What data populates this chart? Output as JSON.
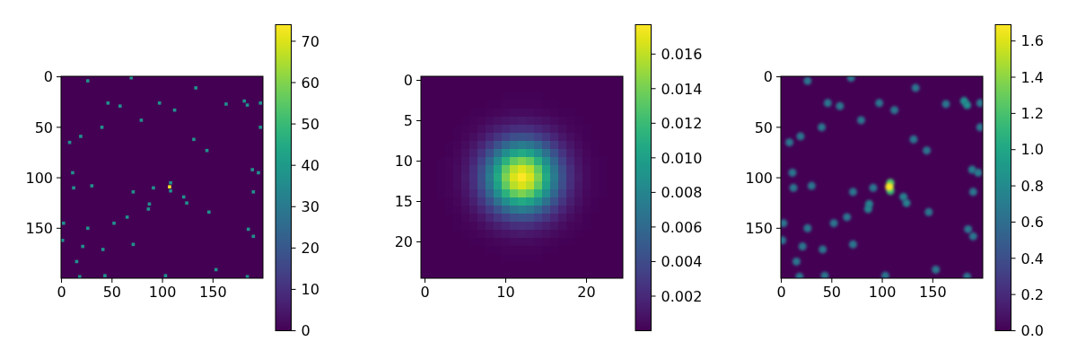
{
  "chart_data": [
    {
      "type": "scatter",
      "marker": "square",
      "clim": [
        0,
        74
      ],
      "cticks": [
        0,
        10,
        20,
        30,
        40,
        50,
        60,
        70
      ],
      "xlim": [
        -0.5,
        199.5
      ],
      "ylim": [
        199.5,
        -0.5
      ],
      "xticks": [
        0,
        50,
        100,
        150
      ],
      "yticks": [
        0,
        50,
        100,
        150
      ],
      "x": [
        26,
        69,
        133,
        46,
        58,
        97,
        112,
        163,
        181,
        184,
        197,
        79,
        40,
        197,
        19,
        8,
        131,
        144,
        11,
        189,
        195,
        12,
        30,
        71,
        91,
        108,
        107,
        108,
        190,
        121,
        124,
        87,
        86,
        146,
        65,
        52,
        2,
        26,
        185,
        190,
        1,
        21,
        41,
        71,
        15,
        18,
        43,
        103,
        153,
        184
      ],
      "values": [
        4,
        1,
        11,
        26,
        29,
        26,
        33,
        27,
        24,
        28,
        26,
        43,
        50,
        50,
        59,
        65,
        62,
        73,
        95,
        92,
        95,
        110,
        108,
        114,
        110,
        105,
        109,
        113,
        114,
        119,
        125,
        126,
        131,
        134,
        139,
        145,
        145,
        150,
        151,
        158,
        162,
        168,
        171,
        166,
        183,
        198,
        197,
        197,
        191,
        198
      ],
      "cvalues": [
        37,
        37,
        37,
        37,
        37,
        37,
        37,
        37,
        37,
        37,
        37,
        37,
        37,
        37,
        37,
        37,
        37,
        37,
        37,
        37,
        37,
        37,
        37,
        37,
        37,
        37,
        74,
        37,
        37,
        37,
        37,
        37,
        37,
        37,
        37,
        37,
        37,
        37,
        37,
        37,
        37,
        37,
        37,
        37,
        37,
        37,
        37,
        37,
        37,
        37
      ]
    },
    {
      "type": "heatmap",
      "clim": [
        0,
        0.0177
      ],
      "cticks": [
        0.002,
        0.004,
        0.006,
        0.008,
        {
          "value": 0.01,
          "label": "0.010"
        },
        0.012,
        0.014,
        0.016
      ],
      "xlim": [
        -0.5,
        24.5
      ],
      "ylim": [
        24.5,
        -0.5
      ],
      "xticks": [
        0,
        10,
        20
      ],
      "yticks": [
        0,
        5,
        10,
        15,
        20
      ],
      "cells": [
        [
          0,
          0,
          0,
          0,
          0,
          0,
          0,
          0,
          0,
          0,
          0,
          0,
          0,
          0,
          0,
          0,
          0,
          0,
          0,
          0,
          0,
          0,
          0,
          0,
          0
        ],
        [
          0,
          0,
          0,
          0,
          0,
          0,
          0,
          0,
          0,
          0,
          0,
          0,
          0,
          0,
          0,
          0,
          0,
          0,
          0,
          0,
          0,
          0,
          0,
          0,
          0
        ],
        [
          0,
          0,
          0,
          0,
          0,
          0,
          0,
          0,
          0,
          0,
          0.0001,
          0.0001,
          0.0001,
          0.0001,
          0.0001,
          0,
          0,
          0,
          0,
          0,
          0,
          0,
          0,
          0,
          0
        ],
        [
          0,
          0,
          0,
          0,
          0,
          0,
          0,
          0,
          0.0001,
          0.0001,
          0.0002,
          0.0002,
          0.0002,
          0.0002,
          0.0002,
          0.0001,
          0.0001,
          0,
          0,
          0,
          0,
          0,
          0,
          0,
          0
        ],
        [
          0,
          0,
          0,
          0,
          0,
          0,
          0.0001,
          0.0001,
          0.0002,
          0.0003,
          0.0004,
          0.0005,
          0.0005,
          0.0005,
          0.0004,
          0.0003,
          0.0002,
          0.0001,
          0.0001,
          0,
          0,
          0,
          0,
          0,
          0
        ],
        [
          0,
          0,
          0,
          0,
          0,
          0.0001,
          0.0002,
          0.0003,
          0.0005,
          0.0007,
          0.0009,
          0.0011,
          0.0012,
          0.0011,
          0.0009,
          0.0007,
          0.0005,
          0.0003,
          0.0002,
          0.0001,
          0,
          0,
          0,
          0,
          0
        ],
        [
          0,
          0,
          0,
          0,
          0.0001,
          0.0002,
          0.0003,
          0.0006,
          0.001,
          0.0015,
          0.0019,
          0.0023,
          0.0024,
          0.0023,
          0.0019,
          0.0015,
          0.001,
          0.0006,
          0.0003,
          0.0002,
          0.0001,
          0,
          0,
          0,
          0
        ],
        [
          0,
          0,
          0,
          0,
          0.0001,
          0.0003,
          0.0006,
          0.0011,
          0.0018,
          0.0027,
          0.0035,
          0.0042,
          0.0044,
          0.0042,
          0.0035,
          0.0027,
          0.0018,
          0.0011,
          0.0006,
          0.0003,
          0.0001,
          0,
          0,
          0,
          0
        ],
        [
          0,
          0,
          0,
          0.0001,
          0.0002,
          0.0005,
          0.001,
          0.0018,
          0.003,
          0.0044,
          0.0058,
          0.0069,
          0.0073,
          0.0069,
          0.0058,
          0.0044,
          0.003,
          0.0018,
          0.001,
          0.0005,
          0.0002,
          0.0001,
          0,
          0,
          0
        ],
        [
          0,
          0,
          0,
          0.0001,
          0.0003,
          0.0007,
          0.0015,
          0.0027,
          0.0044,
          0.0065,
          0.0086,
          0.0101,
          0.0107,
          0.0101,
          0.0086,
          0.0065,
          0.0044,
          0.0027,
          0.0015,
          0.0007,
          0.0003,
          0.0001,
          0,
          0,
          0
        ],
        [
          0,
          0,
          0.0001,
          0.0002,
          0.0004,
          0.0009,
          0.0019,
          0.0035,
          0.0058,
          0.0086,
          0.0113,
          0.0134,
          0.0142,
          0.0134,
          0.0113,
          0.0086,
          0.0058,
          0.0035,
          0.0019,
          0.0009,
          0.0004,
          0.0002,
          0.0001,
          0,
          0
        ],
        [
          0,
          0,
          0.0001,
          0.0002,
          0.0005,
          0.0011,
          0.0023,
          0.0042,
          0.0069,
          0.0101,
          0.0134,
          0.0158,
          0.0167,
          0.0158,
          0.0134,
          0.0101,
          0.0069,
          0.0042,
          0.0023,
          0.0011,
          0.0005,
          0.0002,
          0.0001,
          0,
          0
        ],
        [
          0,
          0,
          0.0001,
          0.0002,
          0.0005,
          0.0012,
          0.0024,
          0.0044,
          0.0073,
          0.0107,
          0.0142,
          0.0167,
          0.0177,
          0.0167,
          0.0142,
          0.0107,
          0.0073,
          0.0044,
          0.0024,
          0.0012,
          0.0005,
          0.0002,
          0.0001,
          0,
          0
        ],
        [
          0,
          0,
          0.0001,
          0.0002,
          0.0005,
          0.0011,
          0.0023,
          0.0042,
          0.0069,
          0.0101,
          0.0134,
          0.0158,
          0.0167,
          0.0158,
          0.0134,
          0.0101,
          0.0069,
          0.0042,
          0.0023,
          0.0011,
          0.0005,
          0.0002,
          0.0001,
          0,
          0
        ],
        [
          0,
          0,
          0.0001,
          0.0002,
          0.0004,
          0.0009,
          0.0019,
          0.0035,
          0.0058,
          0.0086,
          0.0113,
          0.0134,
          0.0142,
          0.0134,
          0.0113,
          0.0086,
          0.0058,
          0.0035,
          0.0019,
          0.0009,
          0.0004,
          0.0002,
          0.0001,
          0,
          0
        ],
        [
          0,
          0,
          0,
          0.0001,
          0.0003,
          0.0007,
          0.0015,
          0.0027,
          0.0044,
          0.0065,
          0.0086,
          0.0101,
          0.0107,
          0.0101,
          0.0086,
          0.0065,
          0.0044,
          0.0027,
          0.0015,
          0.0007,
          0.0003,
          0.0001,
          0,
          0,
          0
        ],
        [
          0,
          0,
          0,
          0.0001,
          0.0002,
          0.0005,
          0.001,
          0.0018,
          0.003,
          0.0044,
          0.0058,
          0.0069,
          0.0073,
          0.0069,
          0.0058,
          0.0044,
          0.003,
          0.0018,
          0.001,
          0.0005,
          0.0002,
          0.0001,
          0,
          0,
          0
        ],
        [
          0,
          0,
          0,
          0,
          0.0001,
          0.0003,
          0.0006,
          0.0011,
          0.0018,
          0.0027,
          0.0035,
          0.0042,
          0.0044,
          0.0042,
          0.0035,
          0.0027,
          0.0018,
          0.0011,
          0.0006,
          0.0003,
          0.0001,
          0,
          0,
          0,
          0
        ],
        [
          0,
          0,
          0,
          0,
          0.0001,
          0.0002,
          0.0003,
          0.0006,
          0.001,
          0.0015,
          0.0019,
          0.0023,
          0.0024,
          0.0023,
          0.0019,
          0.0015,
          0.001,
          0.0006,
          0.0003,
          0.0002,
          0.0001,
          0,
          0,
          0,
          0
        ],
        [
          0,
          0,
          0,
          0,
          0,
          0.0001,
          0.0002,
          0.0003,
          0.0005,
          0.0007,
          0.0009,
          0.0011,
          0.0012,
          0.0011,
          0.0009,
          0.0007,
          0.0005,
          0.0003,
          0.0002,
          0.0001,
          0,
          0,
          0,
          0,
          0
        ],
        [
          0,
          0,
          0,
          0,
          0,
          0,
          0.0001,
          0.0001,
          0.0002,
          0.0003,
          0.0004,
          0.0005,
          0.0005,
          0.0005,
          0.0004,
          0.0003,
          0.0002,
          0.0001,
          0.0001,
          0,
          0,
          0,
          0,
          0,
          0
        ],
        [
          0,
          0,
          0,
          0,
          0,
          0,
          0,
          0,
          0.0001,
          0.0001,
          0.0002,
          0.0002,
          0.0002,
          0.0002,
          0.0002,
          0.0001,
          0.0001,
          0,
          0,
          0,
          0,
          0,
          0,
          0,
          0
        ],
        [
          0,
          0,
          0,
          0,
          0,
          0,
          0,
          0,
          0,
          0,
          0.0001,
          0.0001,
          0.0001,
          0.0001,
          0.0001,
          0,
          0,
          0,
          0,
          0,
          0,
          0,
          0,
          0,
          0
        ],
        [
          0,
          0,
          0,
          0,
          0,
          0,
          0,
          0,
          0,
          0,
          0,
          0,
          0,
          0,
          0,
          0,
          0,
          0,
          0,
          0,
          0,
          0,
          0,
          0,
          0
        ],
        [
          0,
          0,
          0,
          0,
          0,
          0,
          0,
          0,
          0,
          0,
          0,
          0,
          0,
          0,
          0,
          0,
          0,
          0,
          0,
          0,
          0,
          0,
          0,
          0,
          0
        ]
      ]
    },
    {
      "type": "scatter",
      "marker": "circle",
      "clim": [
        0,
        1.69
      ],
      "cticks": [
        {
          "value": 0,
          "label": "0.0"
        },
        0.2,
        0.4,
        0.6,
        0.8,
        {
          "value": 1,
          "label": "1.0"
        },
        1.2,
        1.4,
        1.6
      ],
      "xlim": [
        -0.5,
        199.5
      ],
      "ylim": [
        199.5,
        -0.5
      ],
      "xticks": [
        0,
        50,
        100,
        150
      ],
      "yticks": [
        0,
        50,
        100,
        150
      ],
      "x": [
        26,
        69,
        133,
        46,
        58,
        97,
        112,
        163,
        181,
        184,
        197,
        79,
        40,
        197,
        19,
        8,
        131,
        144,
        11,
        189,
        195,
        12,
        30,
        71,
        91,
        108,
        107,
        108,
        190,
        121,
        124,
        87,
        86,
        146,
        65,
        52,
        2,
        26,
        185,
        190,
        1,
        21,
        41,
        71,
        15,
        18,
        43,
        103,
        153,
        184
      ],
      "values": [
        4,
        1,
        11,
        26,
        29,
        26,
        33,
        27,
        24,
        28,
        26,
        43,
        50,
        50,
        59,
        65,
        62,
        73,
        95,
        92,
        95,
        110,
        108,
        114,
        110,
        105,
        109,
        113,
        114,
        119,
        125,
        126,
        131,
        134,
        139,
        145,
        145,
        150,
        151,
        158,
        162,
        168,
        171,
        166,
        183,
        198,
        197,
        197,
        191,
        198
      ],
      "cvalues": [
        0.65,
        0.65,
        0.65,
        0.65,
        0.65,
        0.65,
        0.65,
        0.65,
        0.83,
        0.83,
        0.65,
        0.65,
        0.65,
        0.65,
        0.65,
        0.65,
        0.65,
        0.65,
        0.65,
        0.7,
        0.7,
        0.65,
        0.65,
        0.65,
        0.65,
        1.22,
        1.69,
        1.14,
        0.65,
        0.72,
        0.72,
        0.75,
        0.75,
        0.65,
        0.65,
        0.65,
        0.65,
        0.65,
        0.65,
        0.65,
        0.65,
        0.65,
        0.65,
        0.65,
        0.65,
        0.65,
        0.65,
        0.65,
        0.65,
        0.65
      ]
    }
  ]
}
